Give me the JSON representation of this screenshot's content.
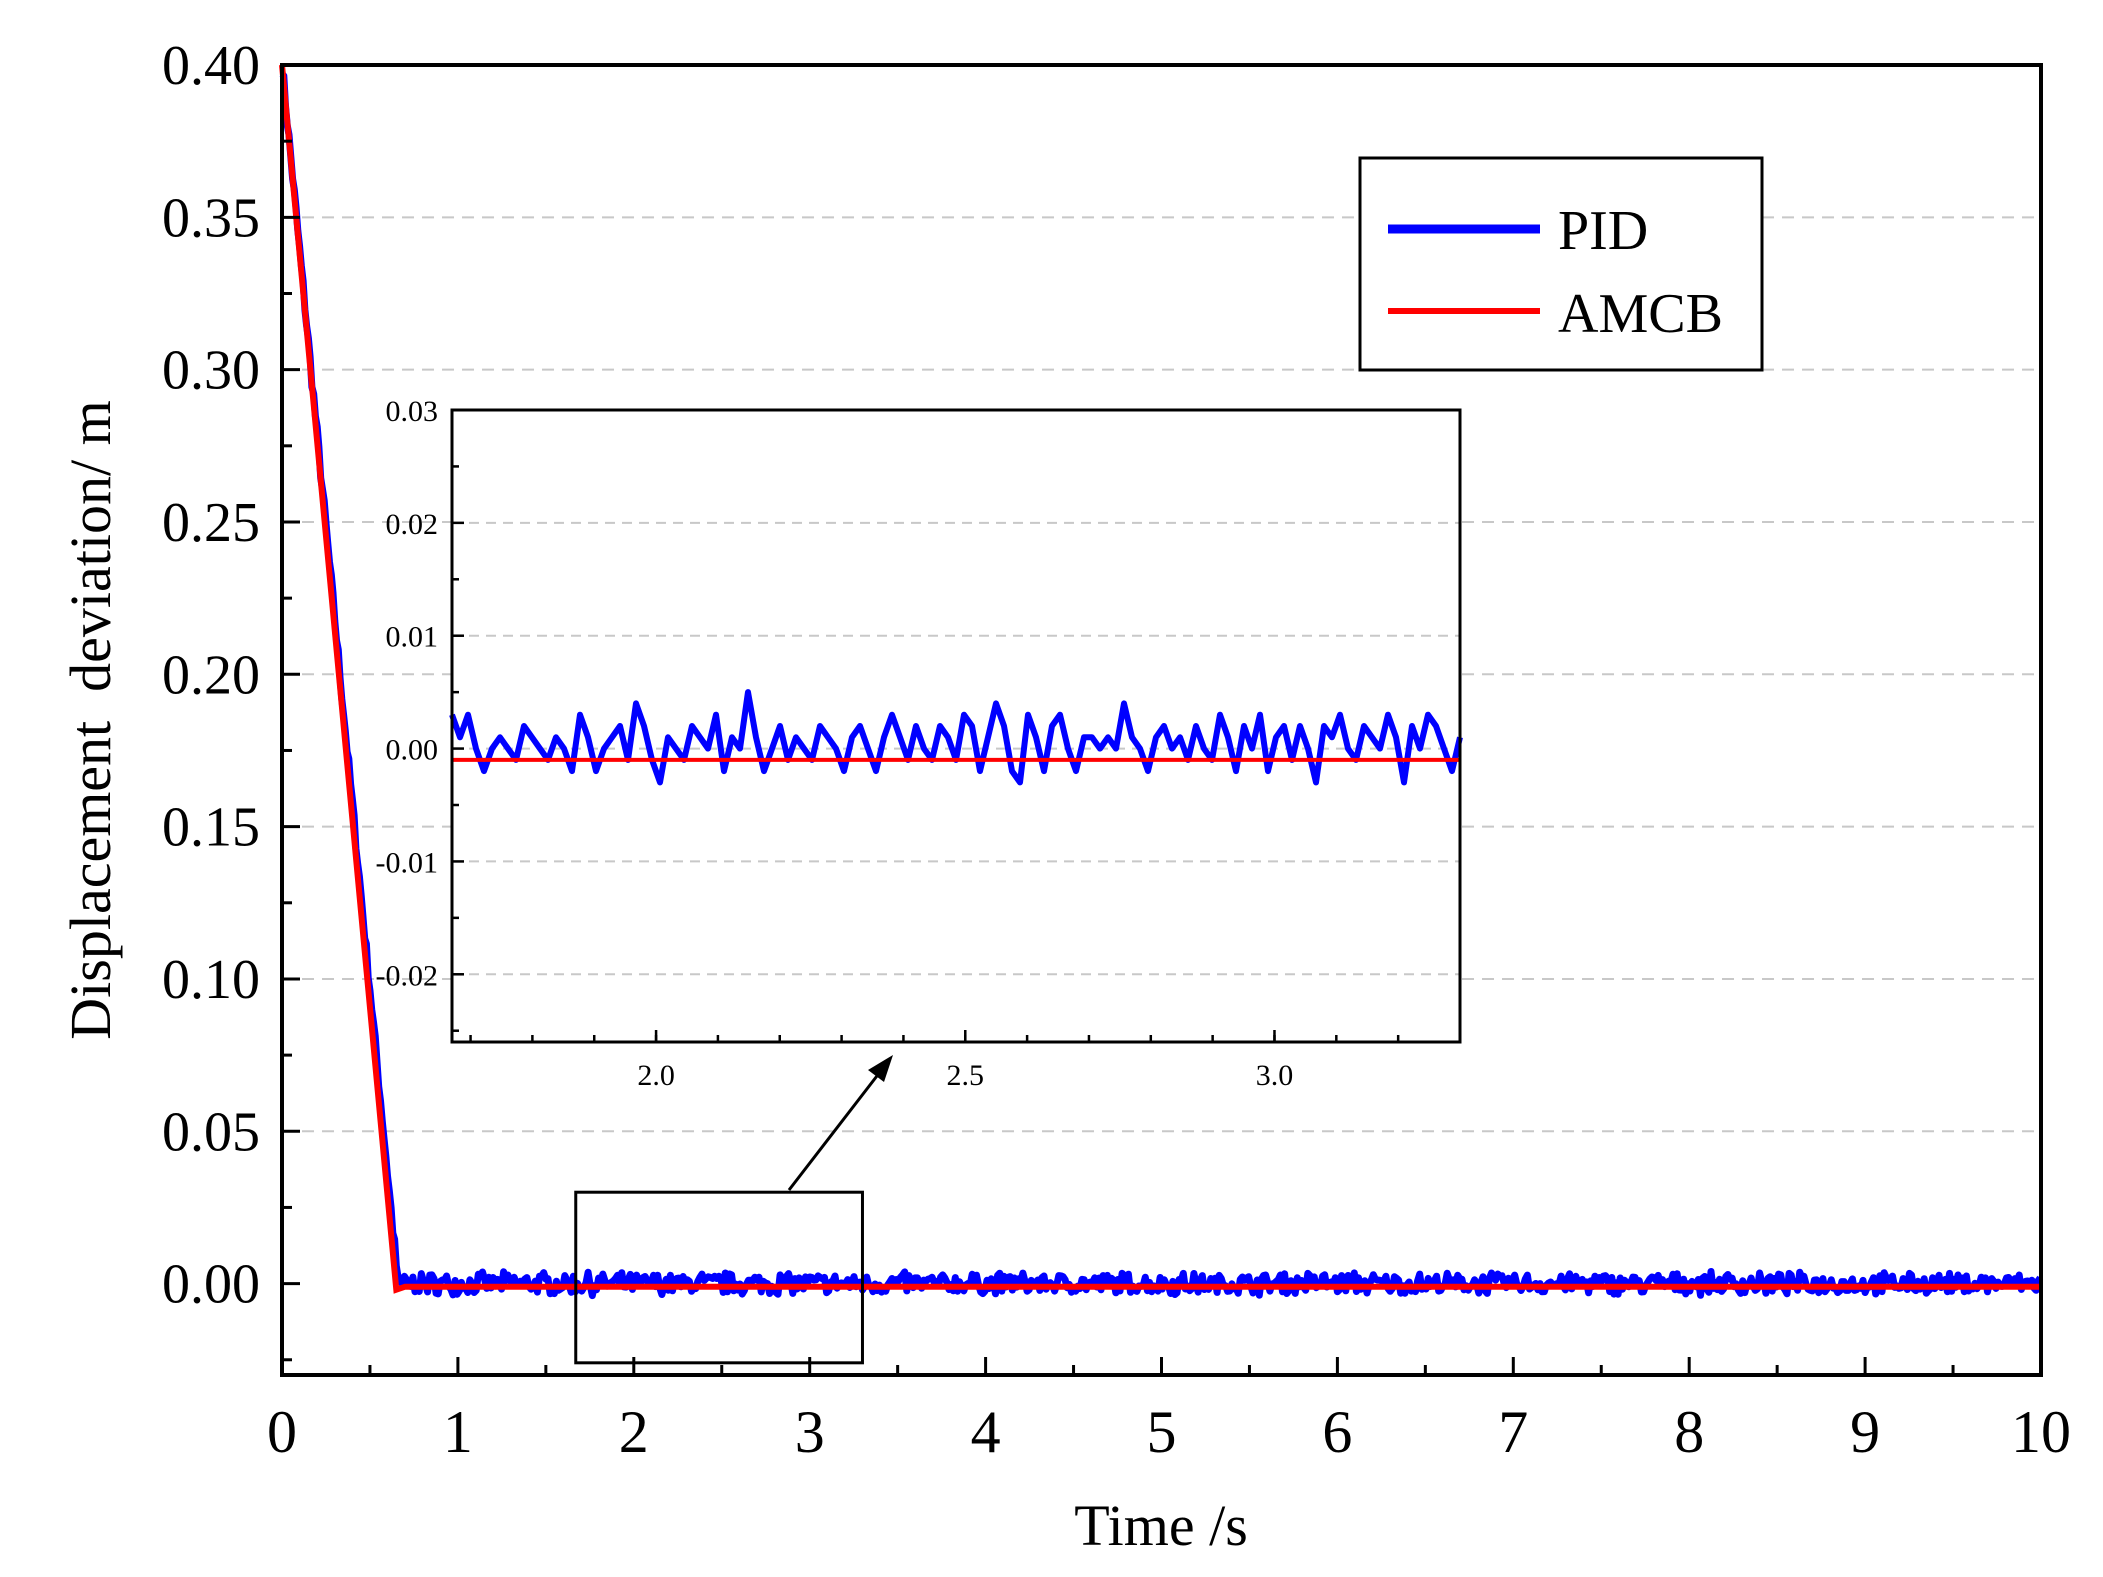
{
  "chart_data": [
    {
      "id": "main",
      "type": "line",
      "xlabel": "Time /s",
      "ylabel": "Displacement  deviation/ m",
      "xlim": [
        0,
        10
      ],
      "ylim": [
        -0.03,
        0.4
      ],
      "xticks": [
        0,
        1,
        2,
        3,
        4,
        5,
        6,
        7,
        8,
        9,
        10
      ],
      "xtick_labels": [
        "0",
        "1",
        "2",
        "3",
        "4",
        "5",
        "6",
        "7",
        "8",
        "9",
        "10"
      ],
      "yticks": [
        0.0,
        0.05,
        0.1,
        0.15,
        0.2,
        0.25,
        0.3,
        0.35,
        0.4
      ],
      "ytick_labels": [
        "0.00",
        "0.05",
        "0.10",
        "0.15",
        "0.20",
        "0.25",
        "0.30",
        "0.35",
        "0.40"
      ],
      "grid": "horizontal dashed",
      "legend_position": "top-right",
      "series": [
        {
          "name": "PID",
          "color": "#0000ff",
          "description_points": {
            "x": [
              0,
              0.65,
              0.7,
              10
            ],
            "y": [
              0.4,
              0.0,
              0.0,
              0.0
            ]
          },
          "steady_noise_amplitude": 0.004
        },
        {
          "name": "AMCB",
          "color": "#ff0000",
          "description_points": {
            "x": [
              0,
              0.65,
              0.7,
              10
            ],
            "y": [
              0.4,
              -0.002,
              -0.001,
              -0.001
            ]
          }
        }
      ],
      "zoom_box": {
        "x": [
          1.67,
          3.3
        ],
        "y": [
          -0.026,
          0.03
        ]
      }
    },
    {
      "id": "inset",
      "type": "line",
      "xlim": [
        1.67,
        3.3
      ],
      "ylim": [
        -0.026,
        0.03
      ],
      "xticks": [
        2.0,
        2.5,
        3.0
      ],
      "xtick_labels": [
        "2.0",
        "2.5",
        "3.0"
      ],
      "yticks": [
        0.03,
        0.02,
        0.01,
        0.0,
        -0.01,
        -0.02
      ],
      "ytick_labels": [
        "0.03",
        "0.02",
        "0.01",
        "0.00",
        "-0.01",
        "-0.02"
      ],
      "grid": "horizontal dashed",
      "series": [
        {
          "name": "PID",
          "color": "#0000ff",
          "x_start": 1.67,
          "x_end": 3.3,
          "y": [
            0.003,
            0.001,
            0.003,
            0.0,
            -0.002,
            0.0,
            0.001,
            0.0,
            -0.001,
            0.002,
            0.001,
            0.0,
            -0.001,
            0.001,
            0.0,
            -0.002,
            0.003,
            0.001,
            -0.002,
            0.0,
            0.001,
            0.002,
            -0.001,
            0.004,
            0.002,
            -0.001,
            -0.003,
            0.001,
            0.0,
            -0.001,
            0.002,
            0.001,
            0.0,
            0.003,
            -0.002,
            0.001,
            0.0,
            0.005,
            0.001,
            -0.002,
            0.0,
            0.002,
            -0.001,
            0.001,
            0.0,
            -0.001,
            0.002,
            0.001,
            0.0,
            -0.002,
            0.001,
            0.002,
            0.0,
            -0.002,
            0.001,
            0.003,
            0.001,
            -0.001,
            0.002,
            0.0,
            -0.001,
            0.002,
            0.001,
            -0.001,
            0.003,
            0.002,
            -0.002,
            0.001,
            0.004,
            0.002,
            -0.002,
            -0.003,
            0.003,
            0.001,
            -0.002,
            0.002,
            0.003,
            0.0,
            -0.002,
            0.001,
            0.001,
            0.0,
            0.001,
            0.0,
            0.004,
            0.001,
            0.0,
            -0.002,
            0.001,
            0.002,
            0.0,
            0.001,
            -0.001,
            0.002,
            0.0,
            -0.001,
            0.003,
            0.001,
            -0.002,
            0.002,
            0.0,
            0.003,
            -0.002,
            0.001,
            0.002,
            -0.001,
            0.002,
            0.0,
            -0.003,
            0.002,
            0.001,
            0.003,
            0.0,
            -0.001,
            0.002,
            0.001,
            0.0,
            0.003,
            0.001,
            -0.003,
            0.002,
            0.0,
            0.003,
            0.002,
            0.0,
            -0.002,
            0.001
          ]
        },
        {
          "name": "AMCB",
          "color": "#ff0000",
          "x_start": 1.67,
          "x_end": 3.3,
          "y": [
            -0.001,
            -0.001
          ]
        }
      ]
    }
  ]
}
